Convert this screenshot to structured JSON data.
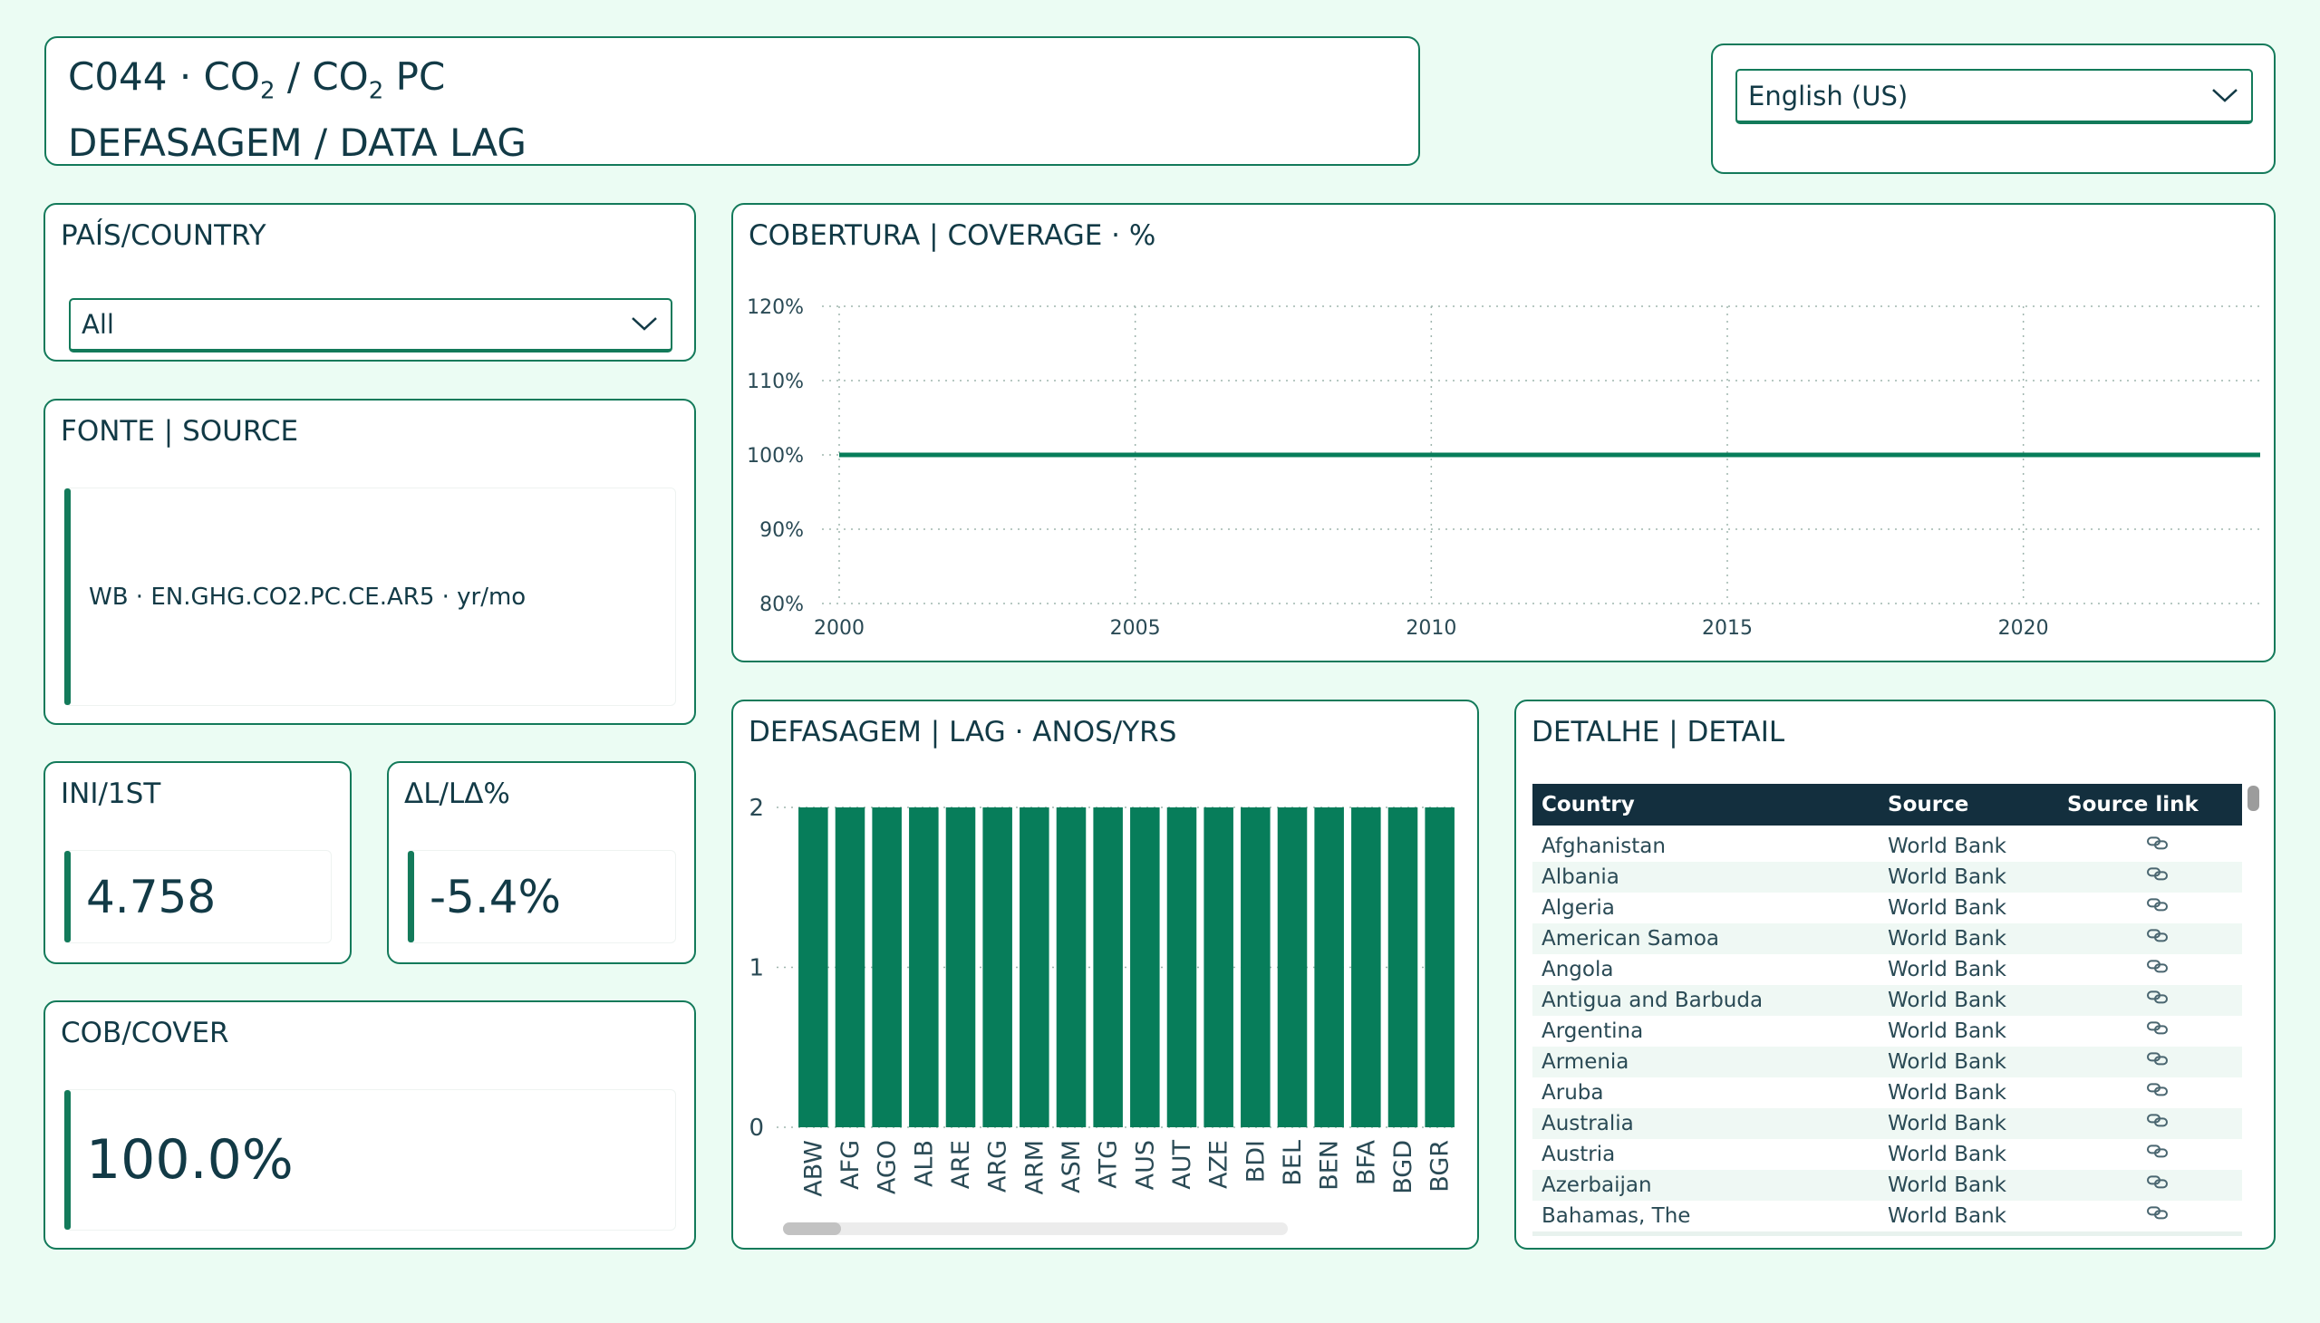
{
  "header": {
    "line1_code": "C044 · CO",
    "line1_sub1": "2",
    "line1_mid": " / CO",
    "line1_sub2": "2",
    "line1_end": " PC",
    "line2": "DEFASAGEM / DATA LAG"
  },
  "language": {
    "selected": "English (US)"
  },
  "country_filter": {
    "title": "PAÍS/COUNTRY",
    "selected": "All"
  },
  "source": {
    "title": "FONTE | SOURCE",
    "value": "WB · EN.GHG.CO2.PC.CE.AR5 · yr/mo"
  },
  "kpis": {
    "first": {
      "title": "INI/1ST",
      "value": "4.758"
    },
    "delta": {
      "title": "ΔL/LΔ%",
      "value": "-5.4%"
    },
    "cover": {
      "title": "COB/COVER",
      "value": "100.0%"
    }
  },
  "colors": {
    "accent": "#137a5a",
    "bar": "#077d5a",
    "header_bg": "#132f3e",
    "page_bg": "#ebfcf3",
    "text": "#123a46"
  },
  "chart_data": [
    {
      "type": "line",
      "title": "COBERTURA | COVERAGE · %",
      "x": [
        2000,
        2024
      ],
      "series": [
        {
          "values": [
            100,
            100
          ]
        }
      ],
      "xlim": [
        2000,
        2024
      ],
      "ylim": [
        80,
        120
      ],
      "xticks": [
        2000,
        2005,
        2010,
        2015,
        2020
      ],
      "xtick_labels": [
        "2000",
        "2005",
        "2010",
        "2015",
        "2020"
      ],
      "yticks": [
        80,
        90,
        100,
        110,
        120
      ],
      "ytick_labels": [
        "80%",
        "90%",
        "100%",
        "110%",
        "120%"
      ],
      "grid": true
    },
    {
      "type": "bar",
      "title": "DEFASAGEM | LAG · ANOS/YRS",
      "categories": [
        "ABW",
        "AFG",
        "AGO",
        "ALB",
        "ARE",
        "ARG",
        "ARM",
        "ASM",
        "ATG",
        "AUS",
        "AUT",
        "AZE",
        "BDI",
        "BEL",
        "BEN",
        "BFA",
        "BGD",
        "BGR"
      ],
      "values": [
        2,
        2,
        2,
        2,
        2,
        2,
        2,
        2,
        2,
        2,
        2,
        2,
        2,
        2,
        2,
        2,
        2,
        2
      ],
      "ylim": [
        0,
        2
      ],
      "yticks": [
        0,
        1,
        2
      ],
      "ytick_labels": [
        "0",
        "1",
        "2"
      ],
      "grid": true
    }
  ],
  "detail": {
    "title": "DETALHE | DETAIL",
    "columns": [
      "Country",
      "Source",
      "Source link"
    ],
    "rows": [
      {
        "country": "Afghanistan",
        "source": "World Bank"
      },
      {
        "country": "Albania",
        "source": "World Bank"
      },
      {
        "country": "Algeria",
        "source": "World Bank"
      },
      {
        "country": "American Samoa",
        "source": "World Bank"
      },
      {
        "country": "Angola",
        "source": "World Bank"
      },
      {
        "country": "Antigua and Barbuda",
        "source": "World Bank"
      },
      {
        "country": "Argentina",
        "source": "World Bank"
      },
      {
        "country": "Armenia",
        "source": "World Bank"
      },
      {
        "country": "Aruba",
        "source": "World Bank"
      },
      {
        "country": "Australia",
        "source": "World Bank"
      },
      {
        "country": "Austria",
        "source": "World Bank"
      },
      {
        "country": "Azerbaijan",
        "source": "World Bank"
      },
      {
        "country": "Bahamas, The",
        "source": "World Bank"
      }
    ],
    "link_icon": "link-icon"
  }
}
